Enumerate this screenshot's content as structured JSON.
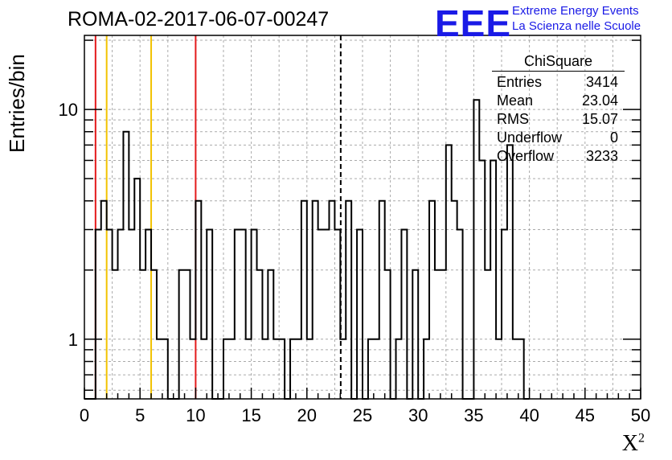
{
  "header": {
    "title": "ROMA-02-2017-06-07-00247",
    "logo_mark": "EEE",
    "logo_line1": "Extreme Energy Events",
    "logo_line2": "La Scienza nelle Scuole"
  },
  "stats_box": {
    "title": "ChiSquare",
    "rows": [
      {
        "label": "Entries",
        "value": "3414"
      },
      {
        "label": "Mean",
        "value": "23.04"
      },
      {
        "label": "RMS",
        "value": "15.07"
      },
      {
        "label": "Underflow",
        "value": "0"
      },
      {
        "label": "Overflow",
        "value": "3233"
      }
    ]
  },
  "colors": {
    "red_lines": "#e31a1c",
    "yellow_lines": "#f2c200",
    "histogram": "#000000",
    "grid": "#aaaaaa",
    "logo": "#1a1ae6"
  },
  "chart_data": {
    "type": "histogram",
    "title": "ROMA-02-2017-06-07-00247",
    "xlabel": "X",
    "xlabel_sup": "2",
    "ylabel": "Entries/bin",
    "x_range": [
      0,
      50
    ],
    "y_range": [
      0.55,
      21
    ],
    "y_scale": "log",
    "grid": true,
    "bin_width": 0.5,
    "x_ticks": [
      0,
      5,
      10,
      15,
      20,
      25,
      30,
      35,
      40,
      45,
      50
    ],
    "x_tick_labels": [
      "0",
      "5",
      "10",
      "15",
      "20",
      "25",
      "30",
      "35",
      "40",
      "45",
      "50"
    ],
    "y_tick_labels": [
      {
        "value": 1,
        "label": "1"
      },
      {
        "value": 10,
        "label": "10"
      }
    ],
    "counts": [
      0,
      0,
      3,
      4,
      3,
      2,
      3,
      8,
      3,
      5,
      2,
      3,
      2,
      1,
      1,
      0,
      0,
      2,
      2,
      1,
      4,
      1,
      3,
      0,
      0,
      1,
      1,
      3,
      3,
      1,
      3,
      2,
      1,
      2,
      1,
      1,
      0,
      1,
      1,
      4,
      1,
      4,
      3,
      3,
      4,
      3,
      1,
      4,
      0,
      3,
      0,
      1,
      1,
      4,
      2,
      0,
      1,
      3,
      0,
      2,
      0,
      1,
      4,
      2,
      2,
      7,
      4,
      3,
      0,
      0,
      11,
      6,
      2,
      6,
      1,
      3,
      7,
      1,
      1,
      0
    ],
    "vertical_lines": [
      {
        "x": 1.0,
        "color": "red",
        "style": "solid"
      },
      {
        "x": 2.0,
        "color": "yellow",
        "style": "solid"
      },
      {
        "x": 6.0,
        "color": "yellow",
        "style": "solid"
      },
      {
        "x": 10.0,
        "color": "red",
        "style": "solid"
      },
      {
        "x": 23.04,
        "color": "black",
        "style": "dashed"
      }
    ]
  }
}
